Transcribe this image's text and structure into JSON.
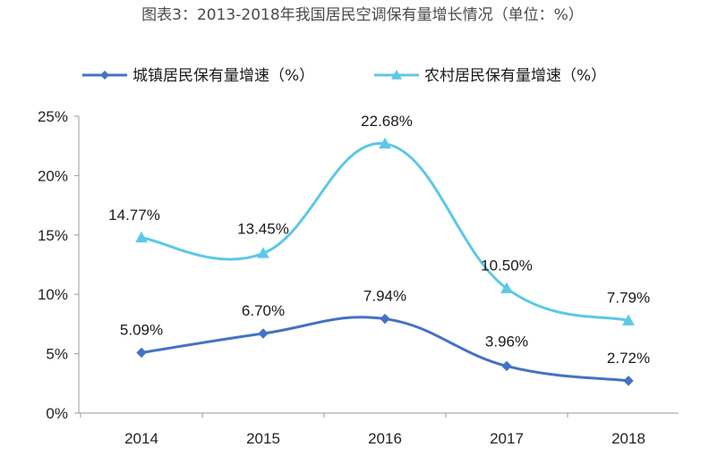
{
  "colors": {
    "urban": "#4472c4",
    "rural": "#5cc8e6",
    "axis": "#999999",
    "text": "#222222"
  },
  "chart_data": {
    "type": "line",
    "title": "图表3：2013-2018年我国居民空调保有量增长情况（单位：%）",
    "categories": [
      "2014",
      "2015",
      "2016",
      "2017",
      "2018"
    ],
    "ylim": [
      0,
      25
    ],
    "yticks": [
      0,
      5,
      10,
      15,
      20,
      25
    ],
    "ytick_labels": [
      "0%",
      "5%",
      "10%",
      "15%",
      "20%",
      "25%"
    ],
    "grid": false,
    "legend_position": "top",
    "series": [
      {
        "name": "城镇居民保有量增速（%）",
        "marker": "diamond",
        "color": "#4472c4",
        "values": [
          5.09,
          6.7,
          7.94,
          3.96,
          2.72
        ],
        "labels": [
          "5.09%",
          "6.70%",
          "7.94%",
          "3.96%",
          "2.72%"
        ]
      },
      {
        "name": "农村居民保有量增速（%）",
        "marker": "triangle",
        "color": "#5cc8e6",
        "values": [
          14.77,
          13.45,
          22.68,
          10.5,
          7.79
        ],
        "labels": [
          "14.77%",
          "13.45%",
          "22.68%",
          "10.50%",
          "7.79%"
        ]
      }
    ]
  }
}
